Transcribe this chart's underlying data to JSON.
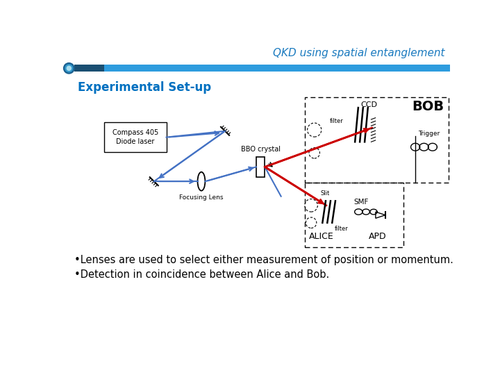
{
  "title": "QKD using spatial entanglement",
  "section_heading": "Experimental Set-up",
  "bullet1": "•Lenses are used to select either measurement of position or momentum.",
  "bullet2": "•Detection in coincidence between Alice and Bob.",
  "title_color": "#1a7abf",
  "heading_color": "#0070c0",
  "text_color": "#000000",
  "bg_color": "#ffffff",
  "bar_light": "#2e9cde",
  "bar_dark": "#1a5276",
  "blue_beam": "#4472C4",
  "red_beam": "#cc0000"
}
